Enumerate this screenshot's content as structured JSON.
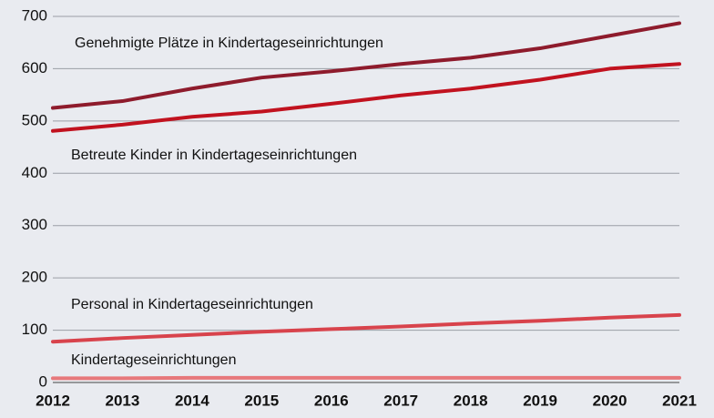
{
  "chart_data": {
    "type": "line",
    "x": [
      2012,
      2013,
      2014,
      2015,
      2016,
      2017,
      2018,
      2019,
      2020,
      2021
    ],
    "series": [
      {
        "name": "Genehmigte Plätze in Kindertageseinrichtungen",
        "color": "#8e1b2c",
        "values": [
          525,
          538,
          562,
          583,
          595,
          609,
          621,
          639,
          663,
          687
        ]
      },
      {
        "name": "Betreute Kinder in Kindertageseinrichtungen",
        "color": "#c1121f",
        "values": [
          481,
          493,
          508,
          518,
          533,
          549,
          562,
          579,
          600,
          609
        ]
      },
      {
        "name": "Personal in Kindertageseinrichtungen",
        "color": "#d8434c",
        "values": [
          78,
          85,
          91,
          97,
          102,
          107,
          113,
          118,
          124,
          129
        ]
      },
      {
        "name": "Kindertageseinrichtungen",
        "color": "#e7787b",
        "values": [
          8,
          8,
          9,
          9,
          9,
          9,
          9,
          9,
          9,
          9
        ]
      }
    ],
    "xlim": [
      2012,
      2021
    ],
    "ylim": [
      0,
      700
    ],
    "yticks": [
      0,
      100,
      200,
      300,
      400,
      500,
      600,
      700
    ],
    "grid": true
  }
}
